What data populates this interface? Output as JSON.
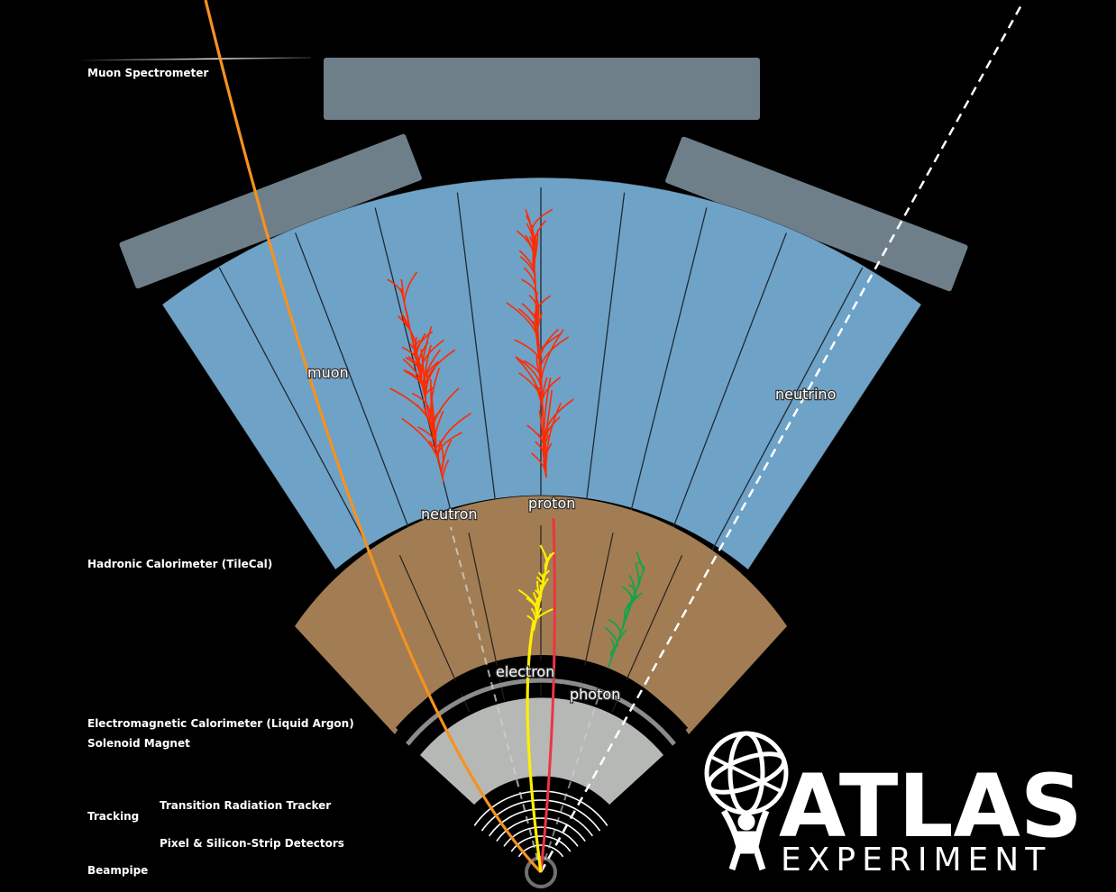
{
  "detector_labels": {
    "muon_spectrometer": "Muon Spectrometer",
    "hadronic_calorimeter": "Hadronic Calorimeter (TileCal)",
    "em_calorimeter": "Electromagnetic Calorimeter (Liquid Argon)",
    "solenoid_magnet": "Solenoid Magnet",
    "tracking": "Tracking",
    "trt": "Transition Radiation Tracker",
    "pixel_silicon": "Pixel & Silicon-Strip Detectors",
    "beampipe": "Beampipe"
  },
  "particle_labels": {
    "muon": "muon",
    "neutrino": "neutrino",
    "neutron": "neutron",
    "proton": "proton",
    "electron": "electron",
    "photon": "photon"
  },
  "logo": {
    "name": "ATLAS",
    "subtitle": "EXPERIMENT"
  },
  "colors": {
    "background": "#000000",
    "muon_chambers": "#6f7f89",
    "hadronic": "#6fa2c7",
    "em": "#a27d53",
    "tracker": "#b6b8b6",
    "muon_track": "#f6921e",
    "neutrino_track": "#ffffff",
    "neutron_shower": "#ff2a00",
    "proton_track": "#ee3344",
    "electron_track": "#ffee00",
    "photon_shower": "#15a34a"
  }
}
